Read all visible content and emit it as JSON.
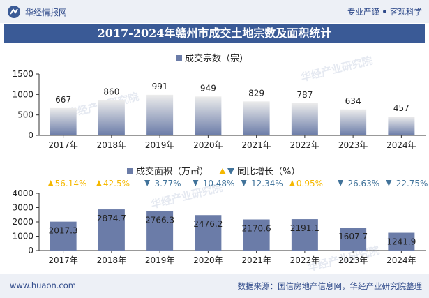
{
  "header": {
    "brand": "华经情报网",
    "tagline_left": "专业严谨",
    "tagline_right": "客观科学"
  },
  "title": "2017-2024年赣州市成交土地宗数及面积统计",
  "watermark": "华经产业研究院",
  "footer": {
    "url": "www.huaon.com",
    "source": "数据来源：国信房地产信息网，华经产业研究院整理"
  },
  "colors": {
    "bar_top": "#e8e8e8",
    "bar_bottom": "#6b7ca8",
    "up": "#f5b800",
    "down": "#41739a",
    "header_bar": "#3a5a96"
  },
  "chart_data": [
    {
      "type": "bar",
      "legend": [
        "成交宗数（宗）"
      ],
      "categories": [
        "2017年",
        "2018年",
        "2019年",
        "2020年",
        "2021年",
        "2022年",
        "2023年",
        "2024年"
      ],
      "series": [
        {
          "name": "成交宗数（宗）",
          "values": [
            667,
            860,
            991,
            949,
            829,
            787,
            634,
            457
          ]
        }
      ],
      "ylim": [
        0,
        1500
      ],
      "yticks": [
        "0",
        "500",
        "1000",
        "1500"
      ],
      "data_labels": [
        "667",
        "860",
        "991",
        "949",
        "829",
        "787",
        "634",
        "457"
      ]
    },
    {
      "type": "bar",
      "legend": [
        "成交面积（万㎡）",
        "同比增长（%）"
      ],
      "categories": [
        "2017年",
        "2018年",
        "2019年",
        "2020年",
        "2021年",
        "2022年",
        "2023年",
        "2024年"
      ],
      "series": [
        {
          "name": "成交面积（万㎡）",
          "values": [
            2017.3,
            2874.7,
            2766.3,
            2476.2,
            2170.6,
            2191.1,
            1607.7,
            1241.9
          ]
        },
        {
          "name": "同比增长（%）",
          "values": [
            56.14,
            42.5,
            -3.77,
            -10.48,
            -12.34,
            0.95,
            -26.63,
            -22.75
          ]
        }
      ],
      "ylim": [
        0,
        4000
      ],
      "yticks": [
        "0",
        "1000",
        "2000",
        "3000",
        "4000"
      ],
      "data_labels": [
        "2017.3",
        "2874.7",
        "2766.3",
        "2476.2",
        "2170.6",
        "2191.1",
        "1607.7",
        "1241.9"
      ],
      "growth_labels": [
        "56.14%",
        "42.5%",
        "-3.77%",
        "-10.48%",
        "-12.34%",
        "0.95%",
        "-26.63%",
        "-22.75%"
      ]
    }
  ]
}
